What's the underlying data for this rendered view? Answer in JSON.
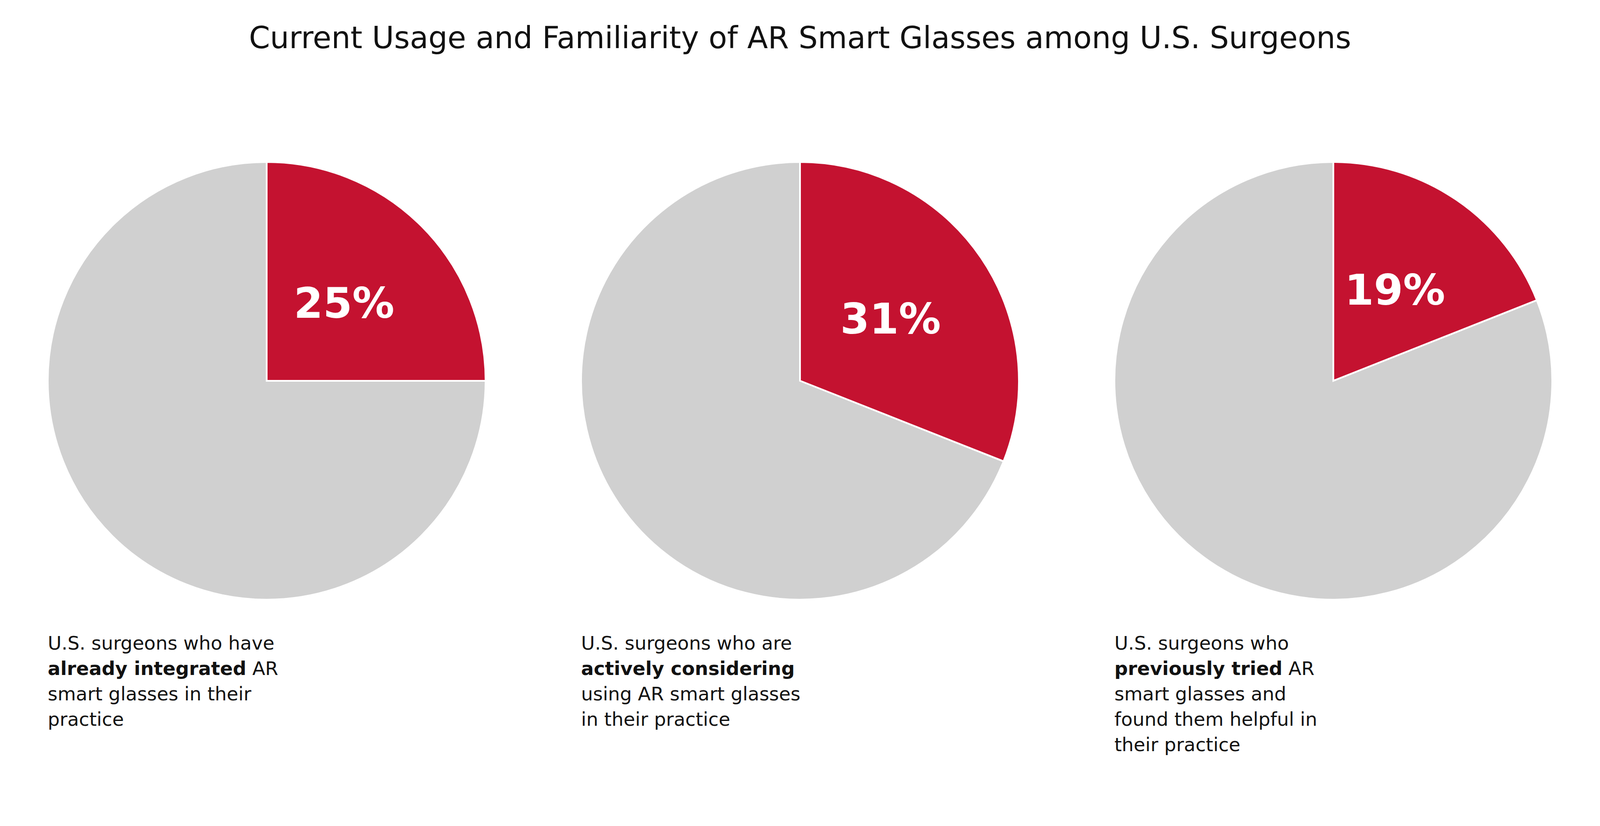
{
  "chart_data": [
    {
      "type": "pie",
      "title": "Current Usage and Familiarity of AR Smart Glasses among U.S. Surgeons",
      "values": [
        25,
        75
      ],
      "value_labels": [
        "25%",
        null
      ],
      "colors": [
        "#C41230",
        "#D0D0D0"
      ],
      "annotation": [
        {
          "text": "U.S. surgeons who have\n",
          "bold": false
        },
        {
          "text": "already integrated",
          "bold": true
        },
        {
          "text": " AR\nsmart glasses in their\npractice",
          "bold": false
        }
      ]
    },
    {
      "type": "pie",
      "values": [
        31,
        69
      ],
      "value_labels": [
        "31%",
        null
      ],
      "colors": [
        "#C41230",
        "#D0D0D0"
      ],
      "annotation": [
        {
          "text": "U.S. surgeons who are\n",
          "bold": false
        },
        {
          "text": "actively considering",
          "bold": true
        },
        {
          "text": "\nusing AR smart glasses\nin their practice",
          "bold": false
        }
      ]
    },
    {
      "type": "pie",
      "values": [
        19,
        81
      ],
      "value_labels": [
        "19%",
        null
      ],
      "colors": [
        "#C41230",
        "#D0D0D0"
      ],
      "annotation": [
        {
          "text": "U.S. surgeons who\n",
          "bold": false
        },
        {
          "text": "previously tried",
          "bold": true
        },
        {
          "text": " AR\nsmart glasses and\nfound them helpful in\ntheir practice",
          "bold": false
        }
      ]
    }
  ]
}
